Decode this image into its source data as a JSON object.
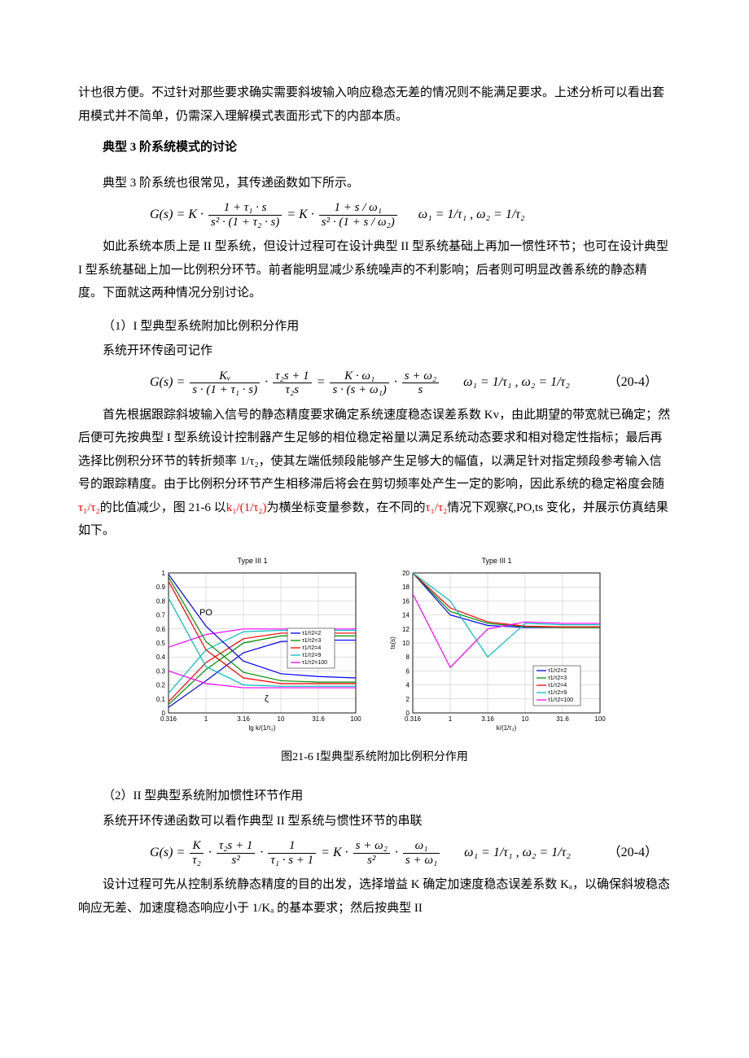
{
  "para1": "计也很方便。不过针对那些要求确实需要斜坡输入响应稳态无差的情况则不能满足要求。上述分析可以看出套用模式并不简单，仍需深入理解模式表面形式下的内部本质。",
  "section_title": "典型 3 阶系统模式的讨论",
  "para2": "典型 3 阶系统也很常见，其传递函数如下所示。",
  "formula1": {
    "left": "G(s) = K ·",
    "f1_num": "1 + τ₁ · s",
    "f1_den": "s² · (1 + τ₂ · s)",
    "mid": "= K ·",
    "f2_num": "1 + s / ω₁",
    "f2_den": "s² · (1 + s / ω₂)",
    "tail": "ω₁ = 1/τ₁ , ω₂ = 1/τ₂"
  },
  "para3": "如此系统本质上是 II 型系统，但设计过程可在设计典型 II 型系统基础上再加一惯性环节；也可在设计典型 I 型系统基础上加一比例积分环节。前者能明显减少系统噪声的不利影响；后者则可明显改善系统的静态精度。下面就这两种情况分别讨论。",
  "sub1_title": "（1）I 型典型系统附加比例积分作用",
  "sub1_line": "系统开环传函可记作",
  "formula2": {
    "left": "G(s) =",
    "f1_num": "Kᵥ",
    "f1_den": "s · (1 + τ₁ · s)",
    "dot1": "·",
    "f2_num": "τ₂s + 1",
    "f2_den": "τ₂s",
    "eq": "=",
    "f3_num": "K · ω₁",
    "f3_den": "s · (s + ω₁)",
    "dot2": "·",
    "f4_num": "s + ω₂",
    "f4_den": "s",
    "tail": "ω₁ = 1/τ₁ ,  ω₂ = 1/τ₂",
    "eqnum": "（20-4）"
  },
  "para4a": "首先根据跟踪斜坡输入信号的静态精度要求确定系统速度稳态误差系数 Kv，由此期望的带宽就已确定；然后便可先按典型 I 型系统设计控制器产生足够的相位稳定裕量以满足系统动态要求和相对稳定性指标；最后再选择比例积分环节的转折频率 1/τ₂，使其左端低频段能够产生足够大的幅值，以满足针对指定频段参考输入信号的跟踪精度。由于比例积分环节产生相移滞后将会在剪切频率处产生一定的影响，因此系统的稳定裕度会随",
  "para4_r1": "τ₁/τ₂",
  "para4b": "的比值减少，图 21-6 以",
  "para4_r2": "k₁/(1/τ₂)",
  "para4c": "为横坐标变量参数，在不同的",
  "para4_r3": "τ₁/τ₂",
  "para4d": "情况下观察ζ,PO,ts 变化，并展示仿真结果如下。",
  "chart_left": {
    "title": "Type III  1",
    "xlabel": "lg  k/(1/τ₂)",
    "xticks": [
      "0.316",
      "1",
      "3.16",
      "10",
      "31.6",
      "100"
    ],
    "yticks": [
      "0",
      "0.1",
      "0.2",
      "0.3",
      "0.4",
      "0.5",
      "0.6",
      "0.7",
      "0.8",
      "0.9",
      "1"
    ],
    "annot_PO": "PO",
    "annot_zeta": "ζ",
    "legend": [
      "τ1/τ2=2",
      "τ1/τ2=3",
      "τ1/τ2=4",
      "τ1/τ2=9",
      "τ1/τ2=100"
    ],
    "colors": [
      "#0000ff",
      "#009000",
      "#ff0000",
      "#00c0c0",
      "#ff00ff"
    ],
    "zeta_series": {
      "s2": [
        0.04,
        0.23,
        0.43,
        0.51,
        0.52,
        0.52
      ],
      "s3": [
        0.06,
        0.31,
        0.5,
        0.55,
        0.55,
        0.55
      ],
      "s4": [
        0.08,
        0.36,
        0.53,
        0.57,
        0.57,
        0.57
      ],
      "s9": [
        0.14,
        0.45,
        0.58,
        0.59,
        0.59,
        0.59
      ],
      "s100": [
        0.47,
        0.56,
        0.6,
        0.6,
        0.6,
        0.6
      ]
    },
    "po_series": {
      "s2": [
        0.99,
        0.62,
        0.37,
        0.28,
        0.26,
        0.25
      ],
      "s3": [
        0.97,
        0.51,
        0.29,
        0.23,
        0.22,
        0.22
      ],
      "s4": [
        0.94,
        0.45,
        0.25,
        0.21,
        0.21,
        0.21
      ],
      "s9": [
        0.82,
        0.33,
        0.2,
        0.19,
        0.19,
        0.19
      ],
      "s100": [
        0.3,
        0.21,
        0.18,
        0.18,
        0.18,
        0.18
      ]
    }
  },
  "chart_right": {
    "title": "Type III  1",
    "xlabel": "k/(1/τ₂)",
    "ylabel": "ts(s)",
    "xticks": [
      "0.316",
      "1",
      "3.16",
      "10",
      "31.6",
      "100"
    ],
    "yticks": [
      "0",
      "2",
      "4",
      "6",
      "8",
      "10",
      "12",
      "14",
      "16",
      "18",
      "20"
    ],
    "legend": [
      "τ1/τ2=2",
      "τ1/τ2=3",
      "τ1/τ2=4",
      "τ1/τ2=9",
      "τ1/τ2=100"
    ],
    "colors": [
      "#0000ff",
      "#009000",
      "#ff0000",
      "#00c0c0",
      "#ff00ff"
    ],
    "ts_series": {
      "s2": [
        20,
        14.0,
        12.5,
        12.2,
        12.2,
        12.2
      ],
      "s3": [
        20,
        14.5,
        12.8,
        12.3,
        12.2,
        12.2
      ],
      "s4": [
        20,
        15.0,
        13.0,
        12.4,
        12.3,
        12.3
      ],
      "s9": [
        20,
        16.0,
        8.0,
        12.8,
        12.6,
        12.6
      ],
      "s100": [
        17,
        6.5,
        12.0,
        13.0,
        12.8,
        12.8
      ]
    }
  },
  "fig_caption": "图21-6  I型典型系统附加比例积分作用",
  "sub2_title": "（2）II 型典型系统附加惯性环节作用",
  "sub2_line": "系统开环传递函数可以看作典型 II 型系统与惯性环节的串联",
  "formula3": {
    "left": "G(s) =",
    "f1_num": "K",
    "f1_den": "τ₂",
    "dot1": "·",
    "f2_num": "τ₂s + 1",
    "f2_den": "s²",
    "dot2": "·",
    "f3_num": "1",
    "f3_den": "τ₁ · s + 1",
    "eq": "= K ·",
    "f4_num": "s + ω₂",
    "f4_den": "s²",
    "dot3": "·",
    "f5_num": "ω₁",
    "f5_den": "s + ω₁",
    "tail": "ω₁ = 1/τ₁ ,  ω₂ = 1/τ₂",
    "eqnum": "（20-4）"
  },
  "para5": "设计过程可先从控制系统静态精度的目的出发，选择增益 K 确定加速度稳态误差系数 Kₐ，以确保斜坡稳态响应无差、加速度稳态响应小于 1/Kₐ 的基本要求；然后按典型 II"
}
